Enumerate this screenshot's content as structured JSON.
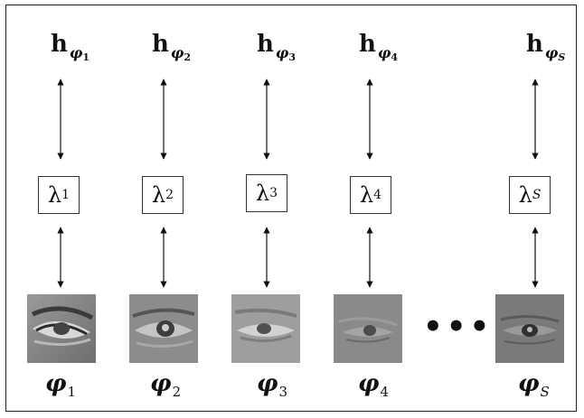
{
  "diagram": {
    "columns": [
      {
        "h_label": "h",
        "h_sub": "φ",
        "h_idx": "1",
        "lambda": "λ",
        "lambda_idx": "1",
        "phi": "φ",
        "phi_idx": "1",
        "image_icon": "eye-image"
      },
      {
        "h_label": "h",
        "h_sub": "φ",
        "h_idx": "2",
        "lambda": "λ",
        "lambda_idx": "2",
        "phi": "φ",
        "phi_idx": "2",
        "image_icon": "eye-image"
      },
      {
        "h_label": "h",
        "h_sub": "φ",
        "h_idx": "3",
        "lambda": "λ",
        "lambda_idx": "3",
        "phi": "φ",
        "phi_idx": "3",
        "image_icon": "eye-image"
      },
      {
        "h_label": "h",
        "h_sub": "φ",
        "h_idx": "4",
        "lambda": "λ",
        "lambda_idx": "4",
        "phi": "φ",
        "phi_idx": "4",
        "image_icon": "eye-image"
      },
      {
        "h_label": "h",
        "h_sub": "φ",
        "h_idx": "S",
        "lambda": "λ",
        "lambda_idx": "S",
        "phi": "φ",
        "phi_idx": "S",
        "image_icon": "eye-image"
      }
    ],
    "ellipsis": "•••",
    "colors": {
      "line": "#111111",
      "frame": "#222222"
    }
  }
}
